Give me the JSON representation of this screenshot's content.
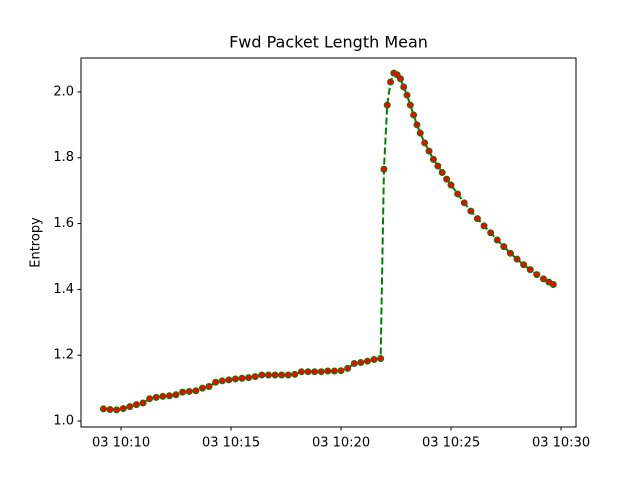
{
  "chart_data": {
    "type": "line",
    "title": "Fwd Packet Length Mean",
    "y_label": "Entropy",
    "line_style": "dashed",
    "marker_color": "red",
    "xlim": [
      8.18,
      30.68
    ],
    "xticks": [
      {
        "value": 10,
        "label": "03 10:10"
      },
      {
        "value": 15,
        "label": "03 10:15"
      },
      {
        "value": 20,
        "label": "03 10:20"
      },
      {
        "value": 25,
        "label": "03 10:25"
      },
      {
        "value": 30,
        "label": "03 10:30"
      }
    ],
    "ylim": [
      0.982,
      2.103
    ],
    "yticks": [
      {
        "value": 1,
        "label": "1.0"
      },
      1.2,
      1.4,
      1.6,
      1.8,
      {
        "value": 2,
        "label": "2.0"
      }
    ],
    "x": [
      9.2,
      9.5,
      9.8,
      10.1,
      10.4,
      10.7,
      11.0,
      11.3,
      11.6,
      11.9,
      12.2,
      12.5,
      12.8,
      13.1,
      13.4,
      13.7,
      14.0,
      14.3,
      14.6,
      14.9,
      15.2,
      15.5,
      15.8,
      16.1,
      16.4,
      16.7,
      17.0,
      17.3,
      17.6,
      17.9,
      18.2,
      18.5,
      18.8,
      19.1,
      19.4,
      19.7,
      20.0,
      20.3,
      20.6,
      20.9,
      21.2,
      21.5,
      21.8,
      21.95,
      22.1,
      22.25,
      22.4,
      22.55,
      22.7,
      22.85,
      23.0,
      23.15,
      23.3,
      23.45,
      23.6,
      23.8,
      24.0,
      24.2,
      24.4,
      24.6,
      24.8,
      25.0,
      25.3,
      25.6,
      25.9,
      26.2,
      26.5,
      26.8,
      27.1,
      27.4,
      27.7,
      28.0,
      28.3,
      28.6,
      28.9,
      29.2,
      29.45,
      29.65
    ],
    "series": [
      {
        "color": "green",
        "values": [
          1.037,
          1.035,
          1.034,
          1.038,
          1.044,
          1.05,
          1.055,
          1.068,
          1.072,
          1.075,
          1.077,
          1.08,
          1.088,
          1.09,
          1.092,
          1.1,
          1.105,
          1.118,
          1.122,
          1.125,
          1.128,
          1.13,
          1.132,
          1.135,
          1.14,
          1.14,
          1.14,
          1.14,
          1.14,
          1.142,
          1.15,
          1.15,
          1.15,
          1.15,
          1.152,
          1.152,
          1.153,
          1.16,
          1.175,
          1.178,
          1.182,
          1.187,
          1.19,
          1.765,
          1.96,
          2.03,
          2.057,
          2.052,
          2.04,
          2.015,
          1.99,
          1.96,
          1.93,
          1.9,
          1.875,
          1.845,
          1.82,
          1.795,
          1.775,
          1.755,
          1.735,
          1.717,
          1.69,
          1.663,
          1.638,
          1.615,
          1.593,
          1.572,
          1.55,
          1.53,
          1.51,
          1.492,
          1.475,
          1.46,
          1.445,
          1.432,
          1.422,
          1.415
        ]
      }
    ]
  }
}
